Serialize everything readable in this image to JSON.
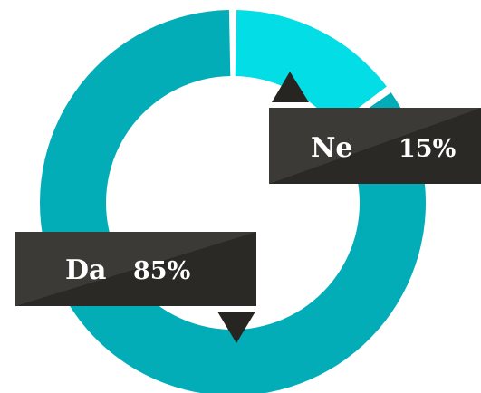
{
  "chart_data": {
    "type": "pie",
    "style": "donut",
    "slices": [
      {
        "label": "Da",
        "value": 85,
        "value_label": "85%"
      },
      {
        "label": "Ne",
        "value": 15,
        "value_label": "15%"
      }
    ],
    "colors": {
      "Da": "#03adb8",
      "Ne": "#03dde5",
      "callout": "#373532",
      "callout_dark": "#262521",
      "callout_text": "#ffffff"
    }
  }
}
